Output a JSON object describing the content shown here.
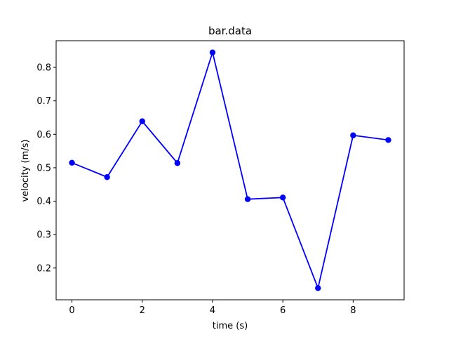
{
  "chart_data": {
    "type": "line",
    "title": "bar.data",
    "xlabel": "time (s)",
    "ylabel": "velocity (m/s)",
    "x": [
      0,
      1,
      2,
      3,
      4,
      5,
      6,
      7,
      8,
      9
    ],
    "series": [
      {
        "values": [
          0.515,
          0.472,
          0.639,
          0.514,
          0.845,
          0.406,
          0.411,
          0.14,
          0.597,
          0.583
        ],
        "color": "#0000ff",
        "marker": "circle"
      }
    ],
    "xlim": [
      -0.45,
      9.45
    ],
    "ylim": [
      0.105,
      0.88
    ],
    "xticks": [
      0,
      2,
      4,
      6,
      8
    ],
    "yticks": [
      0.2,
      0.3,
      0.4,
      0.5,
      0.6,
      0.7,
      0.8
    ],
    "grid": false,
    "legend": false
  }
}
